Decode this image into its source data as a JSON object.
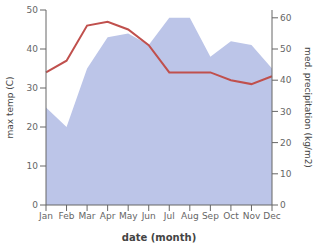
{
  "chart_data": {
    "type": "line",
    "categories": [
      "Jan",
      "Feb",
      "Mar",
      "Apr",
      "May",
      "Jun",
      "Jul",
      "Aug",
      "Sep",
      "Oct",
      "Nov",
      "Dec"
    ],
    "xlabel": "date (month)",
    "ylabel": "max temp (C)",
    "y2label": "med. precipitation (kg/m2)",
    "series": [
      {
        "type": "area",
        "axis": "y2",
        "color": "#bcc5e8",
        "values": [
          31.25,
          25,
          43.75,
          53.75,
          55,
          51.25,
          60,
          60,
          47.5,
          52.5,
          51.25,
          43.75
        ]
      },
      {
        "type": "line",
        "color": "#c0504d",
        "values": [
          34,
          37,
          46,
          47,
          45,
          41,
          34,
          34,
          34,
          32,
          31,
          33
        ]
      }
    ],
    "ylim": [
      0,
      50
    ],
    "yticks": [
      0,
      10,
      20,
      30,
      40,
      50
    ],
    "y2lim": [
      0,
      62.5
    ],
    "y2ticks": [
      0,
      10,
      20,
      30,
      40,
      50,
      60
    ],
    "grid": false
  }
}
